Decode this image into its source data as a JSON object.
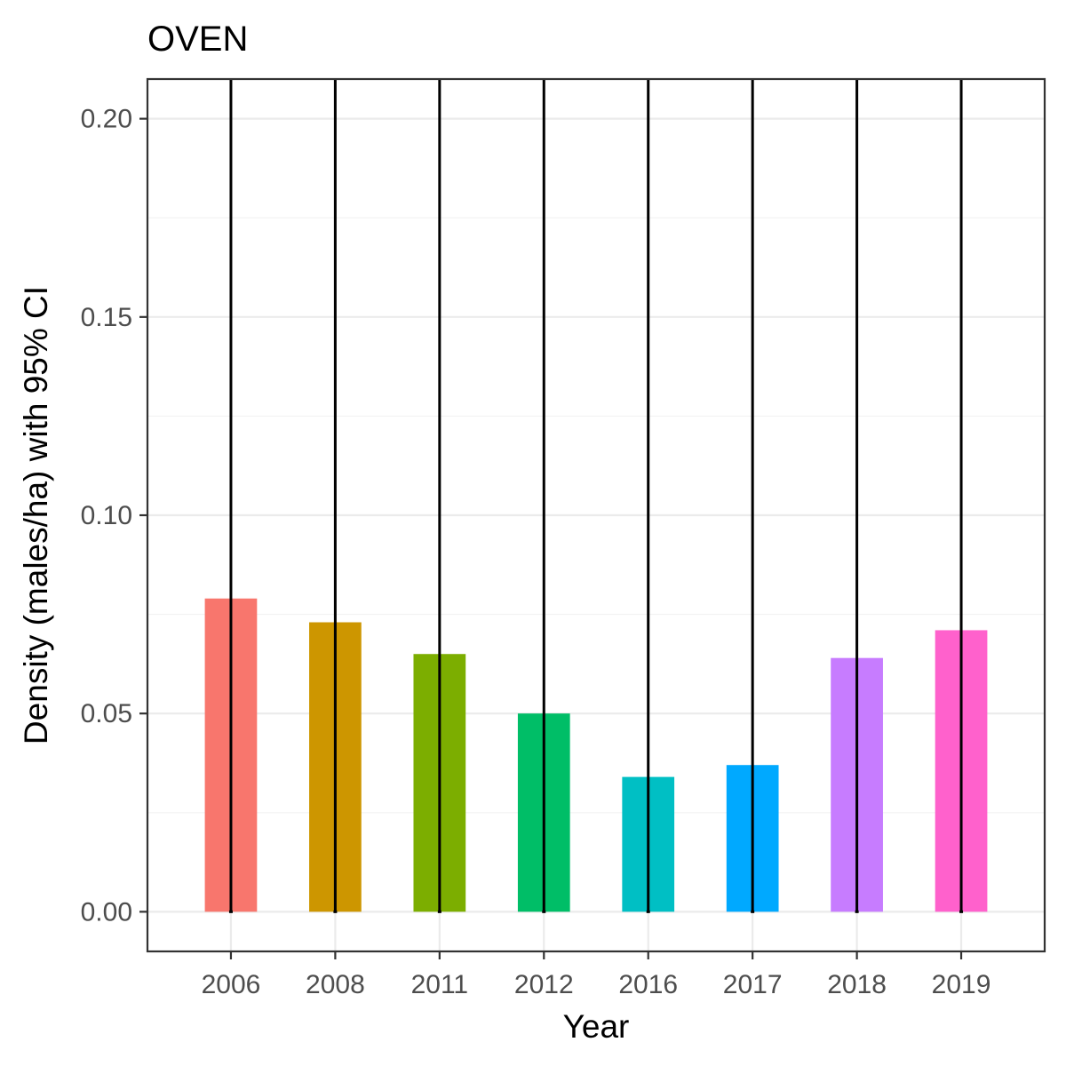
{
  "chart_data": {
    "type": "bar",
    "title": "OVEN",
    "xlabel": "Year",
    "ylabel": "Density (males/ha) with 95% CI",
    "categories": [
      "2006",
      "2008",
      "2011",
      "2012",
      "2016",
      "2017",
      "2018",
      "2019"
    ],
    "values": [
      0.079,
      0.073,
      0.065,
      0.05,
      0.034,
      0.037,
      0.064,
      0.071
    ],
    "error_bars": {
      "lower": [
        0,
        0,
        0,
        0,
        0,
        0,
        0,
        0
      ],
      "upper_exceeds_plot": true
    },
    "colors": [
      "#F8766D",
      "#CD9600",
      "#7CAE00",
      "#00BE67",
      "#00BFC4",
      "#00A9FF",
      "#C77CFF",
      "#FF61CC"
    ],
    "ylim": [
      -0.01,
      0.21
    ],
    "yticks": [
      0.0,
      0.05,
      0.1,
      0.15,
      0.2
    ],
    "ytick_labels": [
      "0.00",
      "0.05",
      "0.10",
      "0.15",
      "0.20"
    ],
    "grid": true,
    "legend": "none"
  }
}
